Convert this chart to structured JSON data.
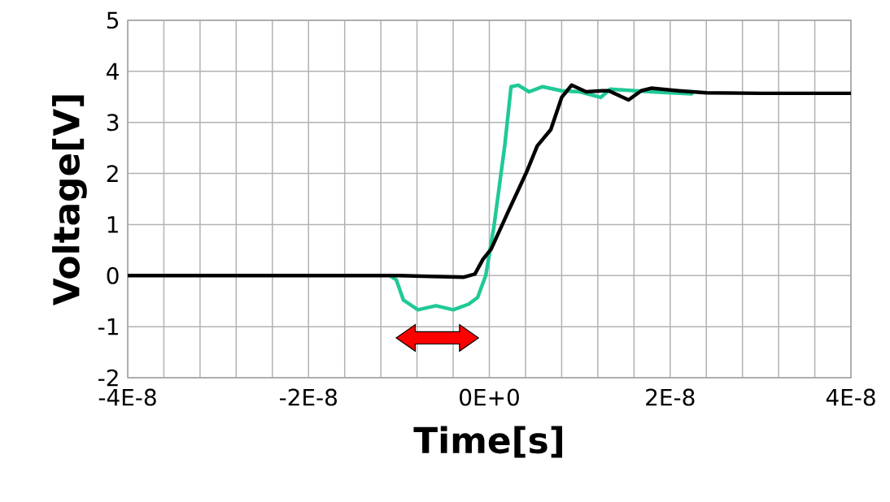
{
  "chart_data": {
    "type": "line",
    "xlabel": "Time[s]",
    "ylabel": "Voltage[V]",
    "xlim": [
      -4e-08,
      4e-08
    ],
    "ylim": [
      -2,
      5
    ],
    "xticks": [
      {
        "value": -4e-08,
        "label": "-4E-8"
      },
      {
        "value": -3.6e-08,
        "label": null
      },
      {
        "value": -3.2e-08,
        "label": null
      },
      {
        "value": -2.8e-08,
        "label": null
      },
      {
        "value": -2.4e-08,
        "label": null
      },
      {
        "value": -2e-08,
        "label": "-2E-8"
      },
      {
        "value": -1.6e-08,
        "label": null
      },
      {
        "value": -1.2e-08,
        "label": null
      },
      {
        "value": -8e-09,
        "label": null
      },
      {
        "value": -4e-09,
        "label": null
      },
      {
        "value": 0,
        "label": "0E+0"
      },
      {
        "value": 4e-09,
        "label": null
      },
      {
        "value": 8e-09,
        "label": null
      },
      {
        "value": 1.2e-08,
        "label": null
      },
      {
        "value": 1.6e-08,
        "label": null
      },
      {
        "value": 2e-08,
        "label": "2E-8"
      },
      {
        "value": 2.4e-08,
        "label": null
      },
      {
        "value": 2.8e-08,
        "label": null
      },
      {
        "value": 3.2e-08,
        "label": null
      },
      {
        "value": 3.6e-08,
        "label": null
      },
      {
        "value": 4e-08,
        "label": "4E-8"
      }
    ],
    "yticks": [
      -2,
      -1,
      0,
      1,
      2,
      3,
      4,
      5
    ],
    "grid": true,
    "marker": "none",
    "line_style": "solid",
    "series": [
      {
        "color": "#20c997",
        "x": [
          -1.1e-08,
          -1.03e-08,
          -9.5e-09,
          -7.9e-09,
          -5.9e-09,
          -4e-09,
          -2.3e-09,
          -1.3e-09,
          -4e-10,
          5e-10,
          1.7e-09,
          2.4e-09,
          3.2e-09,
          4.4e-09,
          5.9e-09,
          8e-09,
          1e-08,
          1.23e-08,
          1.34e-08,
          1.79e-08,
          2.24e-08
        ],
        "values": [
          0,
          -0.08,
          -0.48,
          -0.67,
          -0.59,
          -0.67,
          -0.56,
          -0.43,
          0,
          0.95,
          2.54,
          3.7,
          3.73,
          3.6,
          3.7,
          3.62,
          3.6,
          3.49,
          3.65,
          3.6,
          3.56
        ]
      },
      {
        "color": "#000000",
        "x": [
          -4e-08,
          -3e-08,
          -2e-08,
          -1e-08,
          -2.8e-09,
          -1.6e-09,
          -7e-10,
          2e-10,
          2e-09,
          4.1e-09,
          5.3e-09,
          6.8e-09,
          8e-09,
          9.1e-09,
          1.07e-08,
          1.25e-08,
          1.32e-08,
          1.54e-08,
          1.68e-08,
          1.79e-08,
          2.09e-08,
          2.4e-08,
          3e-08,
          4e-08
        ],
        "values": [
          0,
          0,
          0,
          0,
          -0.03,
          0.03,
          0.32,
          0.52,
          1.22,
          2.02,
          2.54,
          2.86,
          3.49,
          3.73,
          3.6,
          3.62,
          3.62,
          3.44,
          3.62,
          3.67,
          3.62,
          3.58,
          3.57,
          3.57
        ]
      }
    ]
  }
}
